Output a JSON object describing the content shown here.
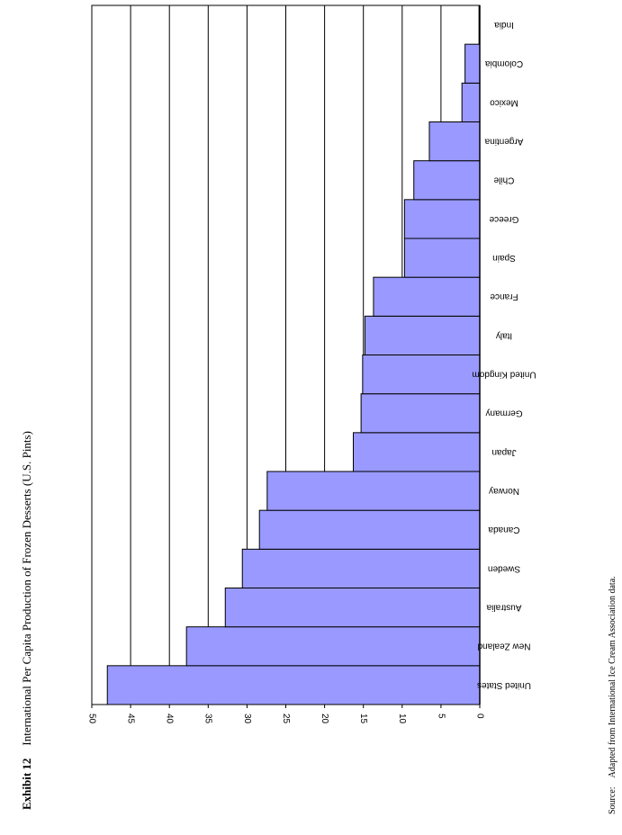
{
  "exhibit": {
    "label": "Exhibit 12",
    "title": "International Per Capita Production of Frozen Desserts (U.S. Pints)"
  },
  "source": {
    "label": "Source:",
    "text": "Adapted from International Ice Cream Association data."
  },
  "colors": {
    "bar": "#9999FF",
    "grid": "#000000",
    "axis": "#000000"
  },
  "chart_data": {
    "type": "bar",
    "orientation": "rotated-90",
    "title": "International Per Capita Production of Frozen Desserts (U.S. Pints)",
    "xlabel": "",
    "ylabel": "",
    "ylim": [
      0,
      50
    ],
    "ticks": [
      0,
      5,
      10,
      15,
      20,
      25,
      30,
      35,
      40,
      45,
      50
    ],
    "tick_labels": [
      "0",
      "5",
      "10",
      "15",
      "20",
      "25",
      "30",
      "35",
      "40",
      "45",
      "50"
    ],
    "grid": true,
    "categories": [
      "United States",
      "New Zealand",
      "Australia",
      "Sweden",
      "Canada",
      "Norway",
      "Japan",
      "Germany",
      "United Kingdom",
      "Italy",
      "France",
      "Spain",
      "Greece",
      "Chile",
      "Argentina",
      "Mexico",
      "Colombia",
      "India"
    ],
    "values": [
      48.0,
      37.8,
      32.8,
      30.6,
      28.4,
      27.4,
      16.3,
      15.3,
      15.1,
      14.8,
      13.7,
      9.7,
      9.7,
      8.5,
      6.5,
      2.3,
      1.9,
      0.1
    ]
  }
}
